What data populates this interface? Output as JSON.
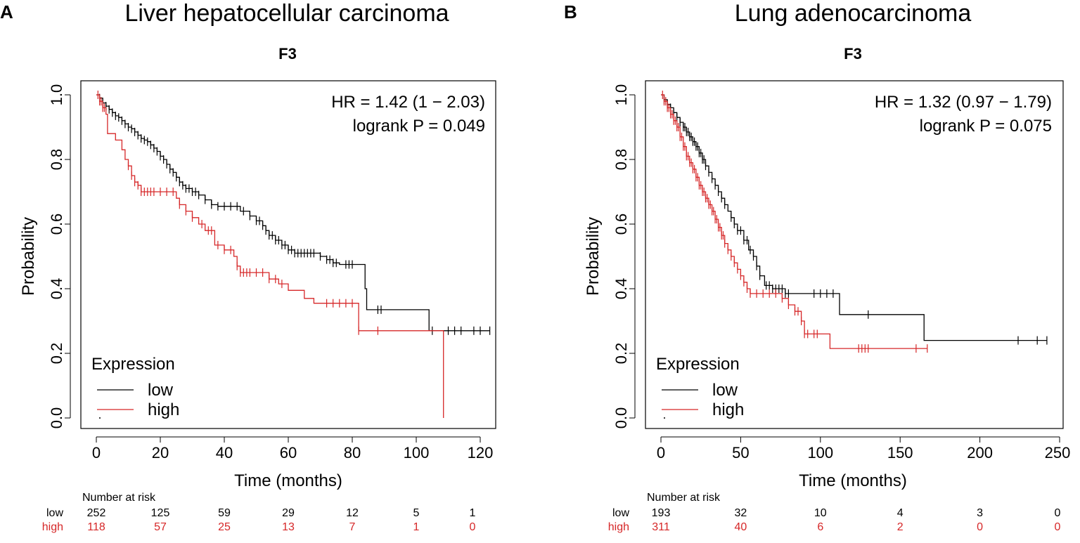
{
  "chart_data": [
    {
      "type": "line",
      "panel_label": "A",
      "title": "Liver hepatocellular carcinoma",
      "subtitle": "F3",
      "xlabel": "Time (months)",
      "ylabel": "Probability",
      "xlim": [
        0,
        120
      ],
      "ylim": [
        0,
        1
      ],
      "x_ticks": [
        0,
        20,
        40,
        60,
        80,
        100,
        120
      ],
      "y_ticks": [
        "0.0",
        "0.2",
        "0.4",
        "0.6",
        "0.8",
        "1.0"
      ],
      "hr_text": "HR = 1.42 (1 − 2.03)",
      "p_text": "logrank P = 0.049",
      "legend": {
        "title": "Expression",
        "entries": [
          "low",
          "high"
        ],
        "placement": "bottom-left"
      },
      "series": [
        {
          "name": "low",
          "color": "#000000",
          "steps": [
            [
              0,
              1.0
            ],
            [
              1,
              0.99
            ],
            [
              2,
              0.975
            ],
            [
              3,
              0.965
            ],
            [
              4,
              0.955
            ],
            [
              5,
              0.945
            ],
            [
              6,
              0.935
            ],
            [
              7,
              0.93
            ],
            [
              8,
              0.92
            ],
            [
              9,
              0.91
            ],
            [
              10,
              0.9
            ],
            [
              11,
              0.895
            ],
            [
              12,
              0.885
            ],
            [
              13,
              0.875
            ],
            [
              14,
              0.865
            ],
            [
              15,
              0.86
            ],
            [
              16,
              0.855
            ],
            [
              17,
              0.845
            ],
            [
              18,
              0.835
            ],
            [
              19,
              0.825
            ],
            [
              20,
              0.81
            ],
            [
              21,
              0.8
            ],
            [
              22,
              0.785
            ],
            [
              23,
              0.77
            ],
            [
              24,
              0.76
            ],
            [
              25,
              0.745
            ],
            [
              26,
              0.73
            ],
            [
              27,
              0.72
            ],
            [
              28,
              0.71
            ],
            [
              30,
              0.7
            ],
            [
              32,
              0.69
            ],
            [
              34,
              0.675
            ],
            [
              36,
              0.66
            ],
            [
              38,
              0.655
            ],
            [
              45,
              0.64
            ],
            [
              48,
              0.625
            ],
            [
              50,
              0.61
            ],
            [
              52,
              0.595
            ],
            [
              53,
              0.58
            ],
            [
              54,
              0.565
            ],
            [
              56,
              0.55
            ],
            [
              58,
              0.535
            ],
            [
              60,
              0.52
            ],
            [
              62,
              0.51
            ],
            [
              70,
              0.5
            ],
            [
              72,
              0.49
            ],
            [
              74,
              0.48
            ],
            [
              76,
              0.475
            ],
            [
              84,
              0.4
            ],
            [
              84.5,
              0.335
            ],
            [
              104,
              0.27
            ],
            [
              123,
              0.27
            ]
          ],
          "censor_x": [
            1,
            2,
            3,
            4,
            5,
            6,
            7,
            8,
            9,
            10,
            11,
            12,
            13,
            14,
            15,
            16,
            17,
            18,
            19,
            20,
            21,
            22,
            23,
            24,
            25,
            26,
            27,
            28,
            29,
            30,
            31,
            32,
            34,
            36,
            38,
            40,
            42,
            44,
            46,
            48,
            50,
            51,
            52,
            53,
            54,
            55,
            56,
            57,
            58,
            59,
            60,
            61,
            62,
            63,
            64,
            65,
            66,
            67,
            68,
            70,
            72,
            73,
            74,
            75,
            78,
            79,
            80,
            88,
            89,
            105,
            110,
            112,
            114,
            118,
            120,
            123
          ]
        },
        {
          "name": "high",
          "color": "#d62728",
          "steps": [
            [
              0,
              1.0
            ],
            [
              1,
              0.98
            ],
            [
              2,
              0.96
            ],
            [
              3,
              0.94
            ],
            [
              3.5,
              0.88
            ],
            [
              6,
              0.86
            ],
            [
              8,
              0.83
            ],
            [
              9,
              0.8
            ],
            [
              10,
              0.78
            ],
            [
              11,
              0.75
            ],
            [
              12,
              0.73
            ],
            [
              13,
              0.72
            ],
            [
              14,
              0.7
            ],
            [
              25,
              0.68
            ],
            [
              26,
              0.66
            ],
            [
              28,
              0.64
            ],
            [
              30,
              0.62
            ],
            [
              32,
              0.6
            ],
            [
              34,
              0.58
            ],
            [
              37,
              0.535
            ],
            [
              40,
              0.52
            ],
            [
              43,
              0.5
            ],
            [
              44,
              0.47
            ],
            [
              45,
              0.45
            ],
            [
              54,
              0.43
            ],
            [
              57,
              0.415
            ],
            [
              60,
              0.395
            ],
            [
              65,
              0.37
            ],
            [
              68,
              0.355
            ],
            [
              82,
              0.27
            ],
            [
              108,
              0.27
            ],
            [
              108.5,
              0.0
            ]
          ],
          "censor_x": [
            0.5,
            1,
            1.5,
            2,
            2.5,
            10,
            11,
            12,
            13,
            14,
            15,
            16,
            17,
            18,
            20,
            22,
            24,
            26,
            28,
            30,
            33,
            35,
            36,
            38,
            40,
            42,
            44,
            45,
            46,
            47,
            48,
            50,
            52,
            54,
            56,
            58,
            72,
            74,
            76,
            78,
            80,
            82,
            88
          ]
        }
      ],
      "risk_table": {
        "header": "Number at risk",
        "rows": [
          {
            "label": "low",
            "values": [
              "252",
              "125",
              "59",
              "29",
              "12",
              "5",
              "1"
            ],
            "color": "#000000"
          },
          {
            "label": "high",
            "values": [
              "118",
              "57",
              "25",
              "13",
              "7",
              "1",
              "0"
            ],
            "color": "#d62728"
          }
        ]
      }
    },
    {
      "type": "line",
      "panel_label": "B",
      "title": "Lung adenocarcinoma",
      "subtitle": "F3",
      "xlabel": "Time (months)",
      "ylabel": "Probability",
      "xlim": [
        0,
        250
      ],
      "ylim": [
        0,
        1
      ],
      "x_ticks": [
        0,
        50,
        100,
        150,
        200,
        250
      ],
      "y_ticks": [
        "0.0",
        "0.2",
        "0.4",
        "0.6",
        "0.8",
        "1.0"
      ],
      "hr_text": "HR = 1.32 (0.97 − 1.79)",
      "p_text": "logrank P = 0.075",
      "legend": {
        "title": "Expression",
        "entries": [
          "low",
          "high"
        ],
        "placement": "bottom-left"
      },
      "series": [
        {
          "name": "low",
          "color": "#000000",
          "steps": [
            [
              0,
              1.0
            ],
            [
              2,
              0.985
            ],
            [
              4,
              0.97
            ],
            [
              6,
              0.96
            ],
            [
              8,
              0.945
            ],
            [
              10,
              0.93
            ],
            [
              12,
              0.915
            ],
            [
              14,
              0.9
            ],
            [
              16,
              0.885
            ],
            [
              18,
              0.87
            ],
            [
              20,
              0.855
            ],
            [
              22,
              0.84
            ],
            [
              24,
              0.82
            ],
            [
              26,
              0.8
            ],
            [
              28,
              0.78
            ],
            [
              30,
              0.76
            ],
            [
              32,
              0.74
            ],
            [
              34,
              0.72
            ],
            [
              36,
              0.7
            ],
            [
              38,
              0.68
            ],
            [
              40,
              0.66
            ],
            [
              42,
              0.64
            ],
            [
              44,
              0.62
            ],
            [
              46,
              0.6
            ],
            [
              48,
              0.58
            ],
            [
              52,
              0.55
            ],
            [
              55,
              0.52
            ],
            [
              58,
              0.5
            ],
            [
              60,
              0.47
            ],
            [
              62,
              0.44
            ],
            [
              65,
              0.41
            ],
            [
              70,
              0.4
            ],
            [
              78,
              0.385
            ],
            [
              112,
              0.32
            ],
            [
              165,
              0.24
            ],
            [
              242,
              0.24
            ]
          ],
          "censor_x": [
            2,
            4,
            6,
            8,
            10,
            12,
            14,
            15,
            16,
            17,
            18,
            19,
            20,
            21,
            22,
            23,
            24,
            25,
            26,
            27,
            28,
            30,
            32,
            34,
            36,
            38,
            40,
            44,
            46,
            48,
            50,
            52,
            54,
            56,
            58,
            60,
            62,
            66,
            68,
            70,
            72,
            74,
            76,
            78,
            80,
            96,
            100,
            104,
            108,
            130,
            224,
            236,
            242
          ]
        },
        {
          "name": "high",
          "color": "#d62728",
          "steps": [
            [
              0,
              1.0
            ],
            [
              2,
              0.98
            ],
            [
              4,
              0.96
            ],
            [
              6,
              0.94
            ],
            [
              8,
              0.92
            ],
            [
              10,
              0.9
            ],
            [
              12,
              0.87
            ],
            [
              14,
              0.84
            ],
            [
              16,
              0.81
            ],
            [
              18,
              0.79
            ],
            [
              20,
              0.77
            ],
            [
              22,
              0.745
            ],
            [
              24,
              0.72
            ],
            [
              26,
              0.7
            ],
            [
              28,
              0.68
            ],
            [
              30,
              0.66
            ],
            [
              32,
              0.64
            ],
            [
              34,
              0.615
            ],
            [
              36,
              0.59
            ],
            [
              38,
              0.565
            ],
            [
              40,
              0.54
            ],
            [
              42,
              0.52
            ],
            [
              44,
              0.5
            ],
            [
              46,
              0.48
            ],
            [
              48,
              0.46
            ],
            [
              50,
              0.44
            ],
            [
              52,
              0.42
            ],
            [
              54,
              0.4
            ],
            [
              56,
              0.385
            ],
            [
              76,
              0.37
            ],
            [
              80,
              0.35
            ],
            [
              84,
              0.33
            ],
            [
              88,
              0.3
            ],
            [
              90,
              0.26
            ],
            [
              98,
              0.26
            ],
            [
              106,
              0.215
            ],
            [
              167,
              0.215
            ]
          ],
          "censor_x": [
            1,
            2,
            3,
            4,
            5,
            6,
            7,
            8,
            9,
            10,
            11,
            12,
            13,
            14,
            15,
            16,
            17,
            18,
            19,
            20,
            21,
            22,
            23,
            24,
            25,
            26,
            27,
            28,
            29,
            30,
            31,
            32,
            33,
            34,
            35,
            36,
            37,
            38,
            39,
            40,
            42,
            44,
            46,
            48,
            50,
            52,
            54,
            56,
            60,
            64,
            68,
            72,
            76,
            80,
            84,
            86,
            88,
            90,
            92,
            96,
            98,
            124,
            126,
            128,
            130,
            160,
            167
          ]
        }
      ],
      "risk_table": {
        "header": "Number at risk",
        "rows": [
          {
            "label": "low",
            "values": [
              "193",
              "32",
              "10",
              "4",
              "3",
              "0"
            ],
            "color": "#000000"
          },
          {
            "label": "high",
            "values": [
              "311",
              "40",
              "6",
              "2",
              "0",
              "0"
            ],
            "color": "#d62728"
          }
        ]
      }
    }
  ]
}
